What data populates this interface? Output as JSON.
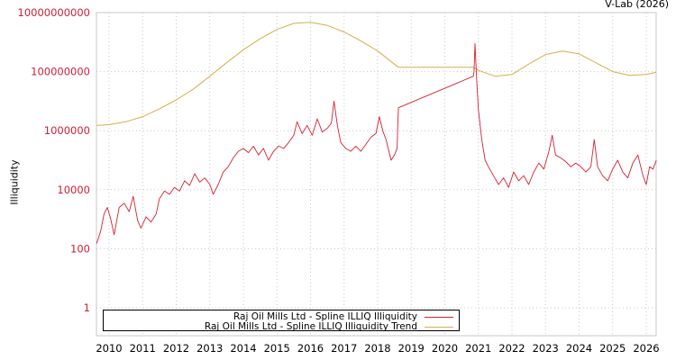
{
  "credit": "V-Lab (2026)",
  "chart_data": {
    "type": "line",
    "title": "",
    "xlabel": "",
    "ylabel": "Illiquidity",
    "yscale": "log",
    "ylim": [
      0.15,
      10000000000
    ],
    "xlim": [
      2009.63,
      2026.3
    ],
    "grid": true,
    "legend_position": "bottom-left inside",
    "y_ticks": [
      {
        "value": 1,
        "label": "1"
      },
      {
        "value": 100,
        "label": "100"
      },
      {
        "value": 10000,
        "label": "10000"
      },
      {
        "value": 1000000,
        "label": "1000000"
      },
      {
        "value": 100000000,
        "label": "100000000"
      },
      {
        "value": 10000000000,
        "label": "10000000000"
      }
    ],
    "x_ticks": [
      "2010",
      "2011",
      "2012",
      "2013",
      "2014",
      "2015",
      "2016",
      "2017",
      "2018",
      "2019",
      "2020",
      "2021",
      "2022",
      "2023",
      "2024",
      "2025",
      "2026"
    ],
    "series": [
      {
        "name": "Raj Oil Mills Ltd - Spline ILLIQ Illiquidity",
        "color": "#d62030",
        "points": [
          [
            2009.63,
            150
          ],
          [
            2009.75,
            400
          ],
          [
            2009.85,
            1500
          ],
          [
            2009.95,
            2500
          ],
          [
            2010.05,
            1000
          ],
          [
            2010.15,
            300
          ],
          [
            2010.3,
            2500
          ],
          [
            2010.45,
            3500
          ],
          [
            2010.6,
            1800
          ],
          [
            2010.72,
            6000
          ],
          [
            2010.85,
            900
          ],
          [
            2010.95,
            500
          ],
          [
            2011.1,
            1200
          ],
          [
            2011.25,
            800
          ],
          [
            2011.4,
            1500
          ],
          [
            2011.5,
            5000
          ],
          [
            2011.65,
            9000
          ],
          [
            2011.8,
            7000
          ],
          [
            2011.95,
            12000
          ],
          [
            2012.1,
            9000
          ],
          [
            2012.25,
            20000
          ],
          [
            2012.4,
            14000
          ],
          [
            2012.55,
            35000
          ],
          [
            2012.7,
            18000
          ],
          [
            2012.85,
            25000
          ],
          [
            2013.0,
            15000
          ],
          [
            2013.1,
            7000
          ],
          [
            2013.25,
            15000
          ],
          [
            2013.4,
            40000
          ],
          [
            2013.55,
            60000
          ],
          [
            2013.7,
            120000
          ],
          [
            2013.85,
            200000
          ],
          [
            2014.0,
            250000
          ],
          [
            2014.15,
            180000
          ],
          [
            2014.3,
            300000
          ],
          [
            2014.45,
            150000
          ],
          [
            2014.6,
            250000
          ],
          [
            2014.75,
            100000
          ],
          [
            2014.9,
            200000
          ],
          [
            2015.05,
            300000
          ],
          [
            2015.2,
            250000
          ],
          [
            2015.35,
            400000
          ],
          [
            2015.5,
            700000
          ],
          [
            2015.6,
            2000000
          ],
          [
            2015.75,
            800000
          ],
          [
            2015.9,
            1500000
          ],
          [
            2016.05,
            700000
          ],
          [
            2016.2,
            2500000
          ],
          [
            2016.35,
            900000
          ],
          [
            2016.5,
            1200000
          ],
          [
            2016.62,
            1800000
          ],
          [
            2016.7,
            10000000
          ],
          [
            2016.8,
            1500000
          ],
          [
            2016.9,
            400000
          ],
          [
            2017.05,
            250000
          ],
          [
            2017.2,
            200000
          ],
          [
            2017.35,
            300000
          ],
          [
            2017.5,
            200000
          ],
          [
            2017.65,
            350000
          ],
          [
            2017.8,
            600000
          ],
          [
            2017.95,
            800000
          ],
          [
            2018.05,
            3000000
          ],
          [
            2018.15,
            1000000
          ],
          [
            2018.25,
            500000
          ],
          [
            2018.4,
            100000
          ],
          [
            2018.5,
            150000
          ],
          [
            2018.58,
            250000
          ],
          [
            2018.6,
            1500000
          ],
          [
            2018.62,
            6000000
          ],
          [
            2020.85,
            70000000
          ],
          [
            2020.87,
            100000000
          ],
          [
            2020.9,
            900000000
          ],
          [
            2020.95,
            50000000
          ],
          [
            2021.0,
            5000000
          ],
          [
            2021.1,
            500000
          ],
          [
            2021.2,
            100000
          ],
          [
            2021.3,
            60000
          ],
          [
            2021.45,
            30000
          ],
          [
            2021.6,
            15000
          ],
          [
            2021.75,
            25000
          ],
          [
            2021.9,
            12000
          ],
          [
            2022.05,
            40000
          ],
          [
            2022.2,
            20000
          ],
          [
            2022.35,
            30000
          ],
          [
            2022.5,
            15000
          ],
          [
            2022.65,
            40000
          ],
          [
            2022.8,
            80000
          ],
          [
            2022.95,
            50000
          ],
          [
            2023.1,
            200000
          ],
          [
            2023.2,
            700000
          ],
          [
            2023.3,
            150000
          ],
          [
            2023.45,
            120000
          ],
          [
            2023.6,
            90000
          ],
          [
            2023.75,
            60000
          ],
          [
            2023.9,
            80000
          ],
          [
            2024.05,
            60000
          ],
          [
            2024.2,
            40000
          ],
          [
            2024.35,
            60000
          ],
          [
            2024.45,
            500000
          ],
          [
            2024.55,
            60000
          ],
          [
            2024.7,
            30000
          ],
          [
            2024.85,
            20000
          ],
          [
            2025.0,
            50000
          ],
          [
            2025.15,
            100000
          ],
          [
            2025.3,
            40000
          ],
          [
            2025.45,
            25000
          ],
          [
            2025.6,
            80000
          ],
          [
            2025.75,
            150000
          ],
          [
            2025.9,
            30000
          ],
          [
            2026.0,
            15000
          ],
          [
            2026.1,
            60000
          ],
          [
            2026.2,
            50000
          ],
          [
            2026.3,
            100000
          ]
        ]
      },
      {
        "name": "Raj Oil Mills Ltd - Spline ILLIQ Illiquidity Trend",
        "color": "#d4b04a",
        "points": [
          [
            2009.63,
            1500000
          ],
          [
            2010.0,
            1600000
          ],
          [
            2010.5,
            2000000
          ],
          [
            2011.0,
            3000000
          ],
          [
            2011.5,
            5500000
          ],
          [
            2012.0,
            11000000
          ],
          [
            2012.5,
            25000000
          ],
          [
            2013.0,
            70000000
          ],
          [
            2013.5,
            200000000
          ],
          [
            2014.0,
            550000000
          ],
          [
            2014.5,
            1300000000
          ],
          [
            2015.0,
            2700000000
          ],
          [
            2015.5,
            4300000000
          ],
          [
            2016.0,
            4700000000
          ],
          [
            2016.5,
            3700000000
          ],
          [
            2017.0,
            2200000000
          ],
          [
            2017.5,
            1100000000
          ],
          [
            2018.0,
            500000000
          ],
          [
            2018.62,
            140000000
          ],
          [
            2020.85,
            140000000
          ],
          [
            2021.0,
            110000000
          ],
          [
            2021.5,
            70000000
          ],
          [
            2022.0,
            80000000
          ],
          [
            2022.5,
            180000000
          ],
          [
            2023.0,
            380000000
          ],
          [
            2023.5,
            500000000
          ],
          [
            2024.0,
            400000000
          ],
          [
            2024.5,
            200000000
          ],
          [
            2025.0,
            100000000
          ],
          [
            2025.5,
            75000000
          ],
          [
            2026.0,
            80000000
          ],
          [
            2026.3,
            95000000
          ]
        ]
      }
    ]
  },
  "legend": {
    "items": [
      {
        "label": "Raj Oil Mills Ltd - Spline ILLIQ Illiquidity",
        "color": "#d62030"
      },
      {
        "label": "Raj Oil Mills Ltd - Spline ILLIQ Illiquidity Trend",
        "color": "#d4b04a"
      }
    ]
  },
  "colors": {
    "tick_label_y": "#cc1f36",
    "grid": "#c8c8c8",
    "frame": "#c8c8c8"
  }
}
